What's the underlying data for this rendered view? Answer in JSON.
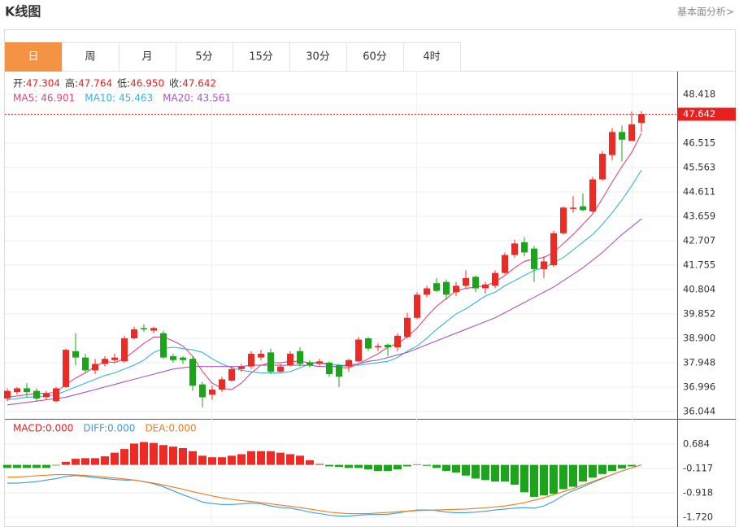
{
  "header": {
    "title": "K线图",
    "link": "基本面分析>"
  },
  "tabs": [
    "日",
    "周",
    "月",
    "5分",
    "15分",
    "30分",
    "60分",
    "4时"
  ],
  "active_tab": 0,
  "chart_data": [
    {
      "type": "candlestick",
      "up_color": "#ee2a24",
      "down_color": "#1ba51b",
      "open": [
        36.55,
        36.8,
        36.95,
        36.85,
        36.6,
        36.45,
        37.0,
        38.4,
        38.15,
        37.65,
        37.9,
        38.05,
        38.0,
        38.9,
        39.3,
        39.2,
        39.1,
        38.2,
        38.15,
        38.1,
        37.1,
        36.7,
        36.9,
        37.25,
        37.7,
        37.8,
        38.15,
        38.35,
        37.6,
        37.85,
        38.4,
        37.95,
        37.9,
        37.95,
        37.85,
        37.8,
        38.0,
        38.9,
        38.55,
        38.65,
        38.55,
        38.95,
        39.7,
        40.6,
        41.05,
        41.1,
        40.7,
        40.95,
        41.3,
        40.85,
        40.95,
        41.45,
        42.15,
        42.65,
        42.4,
        41.6,
        41.75,
        43.0,
        43.95,
        44.05,
        43.85,
        45.1,
        46.05,
        46.95,
        46.6,
        47.304
      ],
      "high": [
        36.95,
        37.0,
        37.15,
        36.95,
        36.85,
        37.0,
        38.5,
        39.1,
        38.3,
        38.1,
        38.2,
        38.3,
        39.0,
        39.35,
        39.45,
        39.35,
        39.2,
        38.3,
        38.2,
        38.2,
        37.2,
        37.05,
        37.4,
        37.8,
        37.9,
        38.4,
        38.45,
        38.5,
        37.9,
        38.4,
        38.55,
        38.05,
        38.1,
        38.0,
        37.9,
        38.1,
        38.95,
        38.95,
        38.7,
        38.7,
        39.1,
        39.9,
        40.7,
        40.95,
        41.25,
        41.2,
        41.1,
        41.55,
        41.35,
        41.1,
        41.55,
        42.25,
        42.75,
        42.85,
        42.5,
        42.1,
        43.1,
        44.05,
        44.45,
        44.55,
        45.2,
        46.2,
        47.1,
        47.2,
        47.75,
        47.764
      ],
      "low": [
        36.45,
        36.7,
        36.6,
        36.45,
        36.5,
        36.4,
        36.95,
        37.85,
        37.55,
        37.5,
        37.8,
        37.95,
        37.95,
        38.85,
        39.15,
        39.1,
        38.1,
        37.95,
        37.9,
        36.85,
        36.2,
        36.5,
        36.8,
        37.2,
        37.6,
        37.7,
        38.05,
        37.5,
        37.55,
        37.8,
        37.8,
        37.75,
        37.8,
        37.4,
        37.0,
        37.6,
        37.95,
        38.4,
        38.4,
        38.2,
        38.4,
        38.9,
        39.65,
        40.5,
        40.7,
        40.4,
        40.55,
        40.85,
        40.7,
        40.65,
        40.85,
        41.4,
        42.05,
        42.1,
        41.1,
        41.25,
        41.7,
        42.95,
        43.8,
        43.85,
        43.8,
        45.05,
        45.85,
        45.8,
        46.6,
        46.95
      ],
      "close": [
        36.85,
        36.95,
        36.8,
        36.55,
        36.75,
        36.95,
        38.45,
        38.15,
        37.65,
        37.9,
        38.1,
        38.15,
        38.9,
        39.25,
        39.25,
        39.3,
        38.15,
        38.05,
        38.05,
        37.05,
        36.6,
        36.9,
        37.3,
        37.7,
        37.8,
        38.3,
        38.3,
        37.6,
        37.8,
        38.3,
        37.9,
        37.85,
        38.0,
        37.5,
        37.4,
        38.05,
        38.85,
        38.5,
        38.6,
        38.55,
        39.0,
        39.7,
        40.6,
        40.85,
        40.75,
        40.6,
        40.95,
        41.25,
        40.85,
        41.0,
        41.45,
        42.15,
        42.6,
        42.25,
        41.6,
        41.9,
        43.0,
        44.0,
        44.0,
        43.9,
        45.1,
        46.1,
        46.95,
        46.65,
        47.25,
        47.642
      ],
      "info": [
        {
          "name": "开:",
          "value": "47.304"
        },
        {
          "name": "高:",
          "value": "47.764"
        },
        {
          "name": "低:",
          "value": "46.950"
        },
        {
          "name": "收:",
          "value": "47.642"
        }
      ],
      "info_color": "#e8201f",
      "ma": [
        {
          "name": "MA5:",
          "color": "#e2457e",
          "values": [
            36.6,
            36.65,
            36.7,
            36.75,
            36.75,
            36.8,
            37.1,
            37.35,
            37.55,
            37.8,
            38.0,
            37.95,
            38.1,
            38.4,
            38.7,
            38.95,
            38.95,
            38.8,
            38.6,
            38.2,
            37.6,
            37.15,
            36.95,
            36.9,
            37.15,
            37.55,
            37.85,
            37.95,
            37.95,
            38.0,
            38.0,
            37.95,
            37.95,
            37.85,
            37.75,
            37.75,
            37.9,
            38.1,
            38.3,
            38.55,
            38.7,
            38.95,
            39.3,
            39.75,
            40.15,
            40.45,
            40.75,
            40.85,
            40.9,
            40.95,
            41.1,
            41.35,
            41.65,
            41.9,
            42.0,
            42.05,
            42.25,
            42.6,
            42.95,
            43.35,
            43.75,
            44.35,
            45.0,
            45.6,
            46.15,
            46.901
          ]
        },
        {
          "name": "MA10:",
          "color": "#34b5d6",
          "values": [
            36.5,
            36.55,
            36.6,
            36.62,
            36.65,
            36.7,
            36.85,
            37.0,
            37.15,
            37.3,
            37.45,
            37.55,
            37.7,
            37.85,
            38.05,
            38.35,
            38.5,
            38.55,
            38.5,
            38.45,
            38.35,
            38.1,
            37.9,
            37.75,
            37.65,
            37.6,
            37.55,
            37.55,
            37.55,
            37.6,
            37.75,
            37.9,
            37.95,
            37.9,
            37.85,
            37.85,
            37.85,
            37.9,
            37.95,
            38.0,
            38.15,
            38.4,
            38.6,
            38.9,
            39.25,
            39.55,
            39.85,
            40.05,
            40.3,
            40.55,
            40.7,
            40.95,
            41.15,
            41.35,
            41.55,
            41.65,
            41.85,
            42.05,
            42.35,
            42.65,
            42.95,
            43.35,
            43.8,
            44.3,
            44.85,
            45.463
          ]
        },
        {
          "name": "MA20:",
          "color": "#a855c4",
          "values": [
            36.3,
            36.35,
            36.4,
            36.45,
            36.5,
            36.55,
            36.6,
            36.7,
            36.8,
            36.9,
            37.0,
            37.1,
            37.2,
            37.3,
            37.4,
            37.5,
            37.6,
            37.7,
            37.75,
            37.8,
            37.8,
            37.8,
            37.8,
            37.8,
            37.8,
            37.85,
            37.85,
            37.85,
            37.85,
            37.85,
            37.85,
            37.85,
            37.8,
            37.8,
            37.8,
            37.85,
            37.9,
            38.0,
            38.05,
            38.15,
            38.25,
            38.35,
            38.5,
            38.65,
            38.8,
            38.95,
            39.1,
            39.25,
            39.4,
            39.55,
            39.7,
            39.9,
            40.1,
            40.3,
            40.5,
            40.7,
            40.9,
            41.15,
            41.4,
            41.65,
            41.95,
            42.25,
            42.6,
            42.95,
            43.25,
            43.561
          ]
        }
      ],
      "current_price": 47.642,
      "ylim": [
        35.758,
        49.307
      ],
      "yticks": [
        48.418,
        46.515,
        45.563,
        44.611,
        43.659,
        42.707,
        41.755,
        40.804,
        39.852,
        {
          "value": 38.9,
          "label": "38.900"
        },
        37.948,
        36.996,
        36.044
      ],
      "grid": true
    },
    {
      "type": "macd",
      "up_color": "#ee2a24",
      "down_color": "#1ba51b",
      "series": [
        {
          "name": "MACD:",
          "color": "#e8201f",
          "current": {
            "value": 0,
            "label": "0.000"
          },
          "values": [
            -0.1,
            -0.1,
            -0.1,
            -0.1,
            -0.1,
            -0.02,
            0.1,
            0.2,
            0.22,
            0.22,
            0.28,
            0.4,
            0.52,
            0.7,
            0.75,
            0.72,
            0.65,
            0.6,
            0.55,
            0.45,
            0.3,
            0.25,
            0.25,
            0.3,
            0.35,
            0.45,
            0.45,
            0.45,
            0.4,
            0.35,
            0.3,
            0.15,
            0.03,
            -0.05,
            -0.07,
            -0.1,
            -0.1,
            -0.15,
            -0.2,
            -0.2,
            -0.15,
            -0.05,
            0.02,
            -0.03,
            -0.1,
            -0.2,
            -0.25,
            -0.35,
            -0.45,
            -0.5,
            -0.55,
            -0.55,
            -0.65,
            -0.9,
            -1.05,
            -1.0,
            -0.95,
            -0.8,
            -0.72,
            -0.55,
            -0.42,
            -0.3,
            -0.2,
            -0.12,
            -0.05,
            0
          ]
        },
        {
          "name": "DIFF:",
          "color": "#3d9be0",
          "current": {
            "value": 0,
            "label": "0.000"
          },
          "values": [
            -0.6,
            -0.6,
            -0.58,
            -0.55,
            -0.5,
            -0.45,
            -0.38,
            -0.35,
            -0.38,
            -0.42,
            -0.45,
            -0.48,
            -0.5,
            -0.5,
            -0.55,
            -0.62,
            -0.72,
            -0.85,
            -0.98,
            -1.1,
            -1.22,
            -1.27,
            -1.3,
            -1.3,
            -1.28,
            -1.25,
            -1.28,
            -1.35,
            -1.4,
            -1.42,
            -1.48,
            -1.55,
            -1.6,
            -1.65,
            -1.68,
            -1.68,
            -1.65,
            -1.63,
            -1.63,
            -1.62,
            -1.58,
            -1.52,
            -1.48,
            -1.48,
            -1.5,
            -1.55,
            -1.57,
            -1.57,
            -1.55,
            -1.52,
            -1.48,
            -1.45,
            -1.42,
            -1.4,
            -1.42,
            -1.35,
            -1.2,
            -1.0,
            -0.85,
            -0.72,
            -0.58,
            -0.45,
            -0.32,
            -0.2,
            -0.1,
            0
          ]
        },
        {
          "name": "DEA:",
          "color": "#ee7d1c",
          "current": {
            "value": 0,
            "label": "0.000"
          },
          "values": [
            -0.4,
            -0.4,
            -0.38,
            -0.36,
            -0.34,
            -0.32,
            -0.32,
            -0.33,
            -0.35,
            -0.37,
            -0.4,
            -0.43,
            -0.46,
            -0.5,
            -0.55,
            -0.6,
            -0.66,
            -0.73,
            -0.8,
            -0.88,
            -0.95,
            -1.02,
            -1.08,
            -1.13,
            -1.17,
            -1.2,
            -1.24,
            -1.28,
            -1.32,
            -1.36,
            -1.4,
            -1.45,
            -1.5,
            -1.55,
            -1.58,
            -1.6,
            -1.6,
            -1.6,
            -1.58,
            -1.56,
            -1.54,
            -1.52,
            -1.5,
            -1.49,
            -1.48,
            -1.47,
            -1.46,
            -1.45,
            -1.43,
            -1.41,
            -1.38,
            -1.35,
            -1.3,
            -1.24,
            -1.16,
            -1.08,
            -0.98,
            -0.88,
            -0.78,
            -0.66,
            -0.55,
            -0.43,
            -0.32,
            -0.2,
            -0.1,
            0
          ]
        }
      ],
      "ylim": [
        -1.96,
        1.458
      ],
      "yticks": [
        0.684,
        -0.117,
        -0.918,
        {
          "value": -1.72,
          "label": "-1.720"
        }
      ],
      "grid": true
    }
  ]
}
